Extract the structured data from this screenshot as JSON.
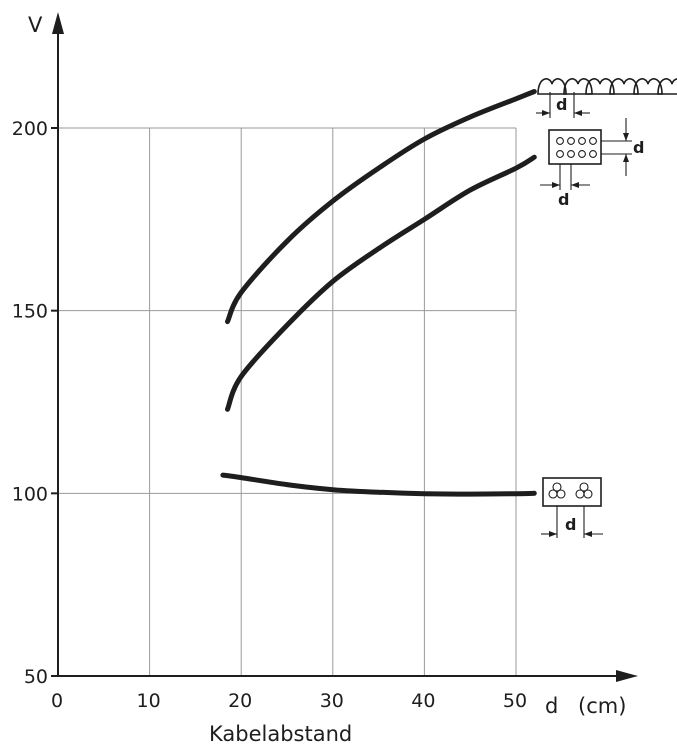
{
  "chart_data": {
    "type": "line",
    "title": "",
    "xlabel": "Kabelabstand",
    "x_axis_symbol": "d",
    "x_unit": "(cm)",
    "ylabel": "V",
    "xlim": [
      0,
      52
    ],
    "ylim": [
      50,
      200
    ],
    "x_ticks": [
      "0",
      "10",
      "20",
      "30",
      "40",
      "50"
    ],
    "y_ticks": [
      "50",
      "100",
      "150",
      "200"
    ],
    "grid": true,
    "series": [
      {
        "symbol": "six-single-core-cables-in-a-row",
        "spacing_label": "d",
        "x": [
          18.5,
          20,
          25,
          30,
          35,
          40,
          45,
          50,
          52
        ],
        "y": [
          147,
          155,
          169,
          180,
          189,
          197,
          203,
          208,
          210
        ]
      },
      {
        "symbol": "eight-cables-in-two-rows",
        "spacing_label": "d",
        "x": [
          18.5,
          20,
          25,
          30,
          35,
          40,
          45,
          50,
          52
        ],
        "y": [
          123,
          132,
          146,
          158,
          167,
          175,
          183,
          189,
          192
        ]
      },
      {
        "symbol": "two-triplex-bundles",
        "spacing_label": "d",
        "x": [
          18,
          20,
          25,
          30,
          35,
          40,
          45,
          50,
          52
        ],
        "y": [
          105,
          104.3,
          102.4,
          101,
          100.3,
          99.9,
          99.8,
          99.9,
          100
        ]
      }
    ]
  }
}
